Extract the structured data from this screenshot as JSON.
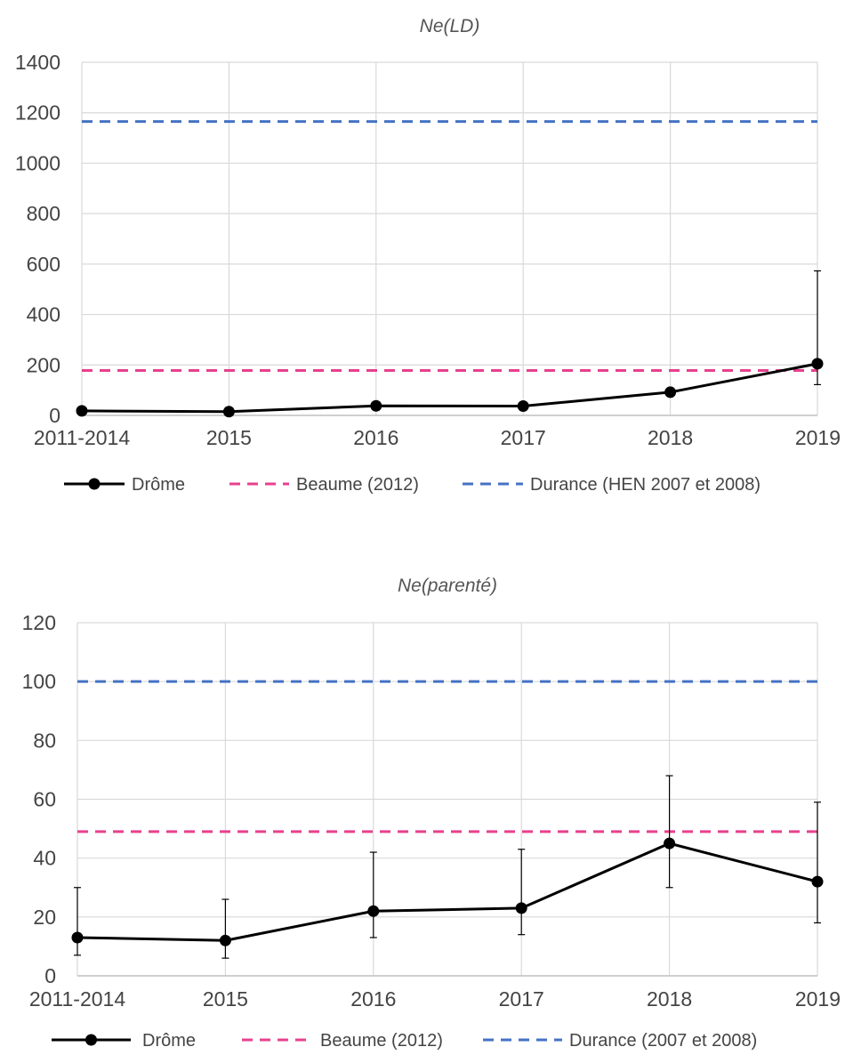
{
  "chart_data": [
    {
      "type": "line",
      "title": "Ne(LD)",
      "categories": [
        "2011-2014",
        "2015",
        "2016",
        "2017",
        "2018",
        "2019"
      ],
      "ylim": [
        0,
        1400
      ],
      "yticks": [
        0,
        200,
        400,
        600,
        800,
        1000,
        1200,
        1400
      ],
      "grid": true,
      "legend_position": "bottom",
      "series": [
        {
          "name": "Drôme",
          "values": [
            18,
            15,
            38,
            37,
            92,
            205
          ],
          "error_low": [
            null,
            null,
            null,
            null,
            null,
            122
          ],
          "error_high": [
            null,
            null,
            null,
            null,
            null,
            573
          ],
          "color": "#000000",
          "style": "solid-markers"
        },
        {
          "name": "Beaume (2012)",
          "constant": 178,
          "color": "#e8408e",
          "style": "dashed"
        },
        {
          "name": "Durance (HEN 2007 et 2008)",
          "constant": 1165,
          "color": "#4472c4",
          "style": "dashed"
        }
      ]
    },
    {
      "type": "line",
      "title": "Ne(parenté)",
      "categories": [
        "2011-2014",
        "2015",
        "2016",
        "2017",
        "2018",
        "2019"
      ],
      "ylim": [
        0,
        120
      ],
      "yticks": [
        0,
        20,
        40,
        60,
        80,
        100,
        120
      ],
      "grid": true,
      "legend_position": "bottom",
      "series": [
        {
          "name": "Drôme",
          "values": [
            13,
            12,
            22,
            23,
            45,
            32
          ],
          "error_low": [
            7,
            6,
            13,
            14,
            30,
            18
          ],
          "error_high": [
            30,
            26,
            42,
            43,
            68,
            59
          ],
          "color": "#000000",
          "style": "solid-markers"
        },
        {
          "name": "Beaume (2012)",
          "constant": 49,
          "color": "#e8408e",
          "style": "dashed"
        },
        {
          "name": "Durance (2007 et 2008)",
          "constant": 100,
          "color": "#4472c4",
          "style": "dashed"
        }
      ]
    }
  ]
}
